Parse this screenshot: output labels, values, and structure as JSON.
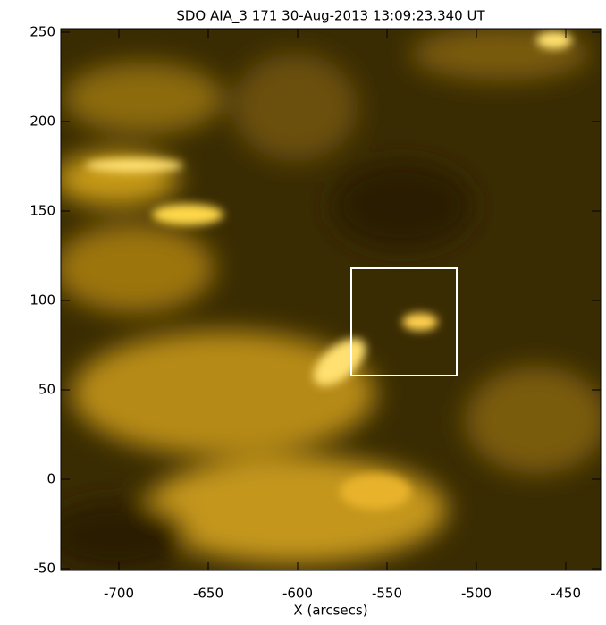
{
  "chart_data": {
    "type": "image",
    "title": "SDO AIA_3 171  30-Aug-2013 13:09:23.340 UT",
    "xlabel": "X (arcsecs)",
    "xlim": [
      -732.5,
      -430.5
    ],
    "xticks": [
      -700,
      -650,
      -600,
      -550,
      -500,
      -450
    ],
    "ylim": [
      -51,
      252
    ],
    "yticks": [
      -50,
      0,
      50,
      100,
      150,
      200,
      250
    ],
    "box": {
      "x": [
        -570,
        -511
      ],
      "y": [
        58,
        118
      ],
      "color": "#ffffff"
    }
  }
}
